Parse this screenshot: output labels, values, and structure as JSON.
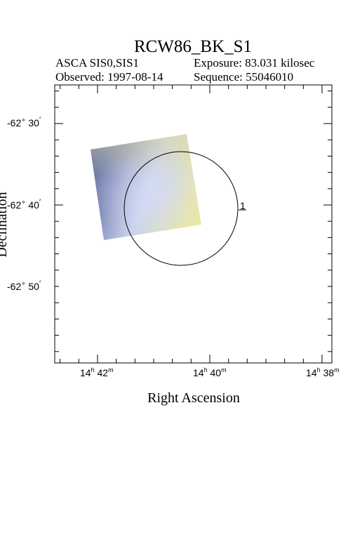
{
  "title": "RCW86_BK_S1",
  "header": {
    "instrument": "ASCA SIS0,SIS1",
    "observed": "Observed: 1997-08-14",
    "exposure": "Exposure: 83.031 kilosec",
    "sequence": "Sequence: 55046010"
  },
  "axes": {
    "x_label": "Right Ascension",
    "y_label": "Declination",
    "y_ticks": [
      {
        "deg": "-62",
        "min": "30"
      },
      {
        "deg": "-62",
        "min": "40"
      },
      {
        "deg": "-62",
        "min": "50"
      }
    ],
    "x_ticks": [
      {
        "h": "14",
        "m": "42"
      },
      {
        "h": "14",
        "m": "40"
      },
      {
        "h": "14",
        "m": "38"
      }
    ]
  },
  "region_label": "1",
  "colors": {
    "image_blue": "#5d6b9a",
    "image_yellow": "#e8e6a8",
    "image_light": "#c9d2ee"
  }
}
